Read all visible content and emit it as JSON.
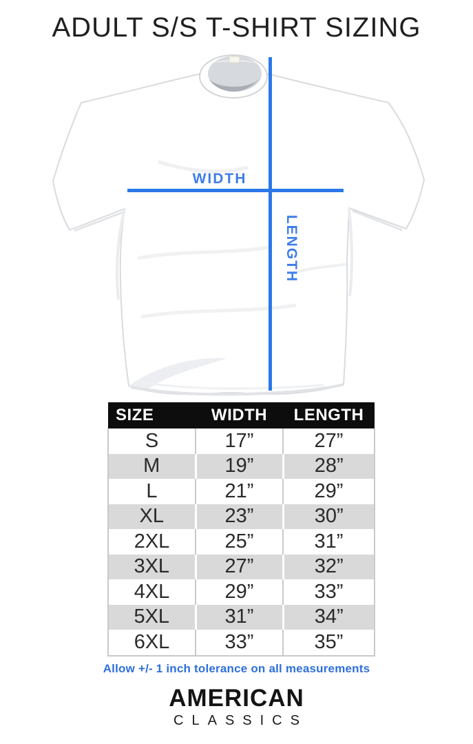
{
  "page": {
    "title": "ADULT S/S T-SHIRT SIZING"
  },
  "theme": {
    "accent-blue": "#2a78e9",
    "label-blue": "#3f7dea",
    "note-blue": "#2e6fdd",
    "header-bg": "#0d0d0d",
    "stripe-gray": "#d9d9d9",
    "border-gray": "#c9c9c9",
    "ink": "#202020"
  },
  "diagram": {
    "width_label": "WIDTH",
    "length_label": "LENGTH"
  },
  "table": {
    "columns": [
      "SIZE",
      "WIDTH",
      "LENGTH"
    ],
    "rows": [
      [
        "S",
        "17”",
        "27”"
      ],
      [
        "M",
        "19”",
        "28”"
      ],
      [
        "L",
        "21”",
        "29”"
      ],
      [
        "XL",
        "23”",
        "30”"
      ],
      [
        "2XL",
        "25”",
        "31”"
      ],
      [
        "3XL",
        "27”",
        "32”"
      ],
      [
        "4XL",
        "29”",
        "33”"
      ],
      [
        "5XL",
        "31”",
        "34”"
      ],
      [
        "6XL",
        "33”",
        "35”"
      ]
    ]
  },
  "note": {
    "text": "Allow +/- 1 inch tolerance on all measurements"
  },
  "brand": {
    "line1": "AMERICAN",
    "line2": "CLASSICS"
  }
}
